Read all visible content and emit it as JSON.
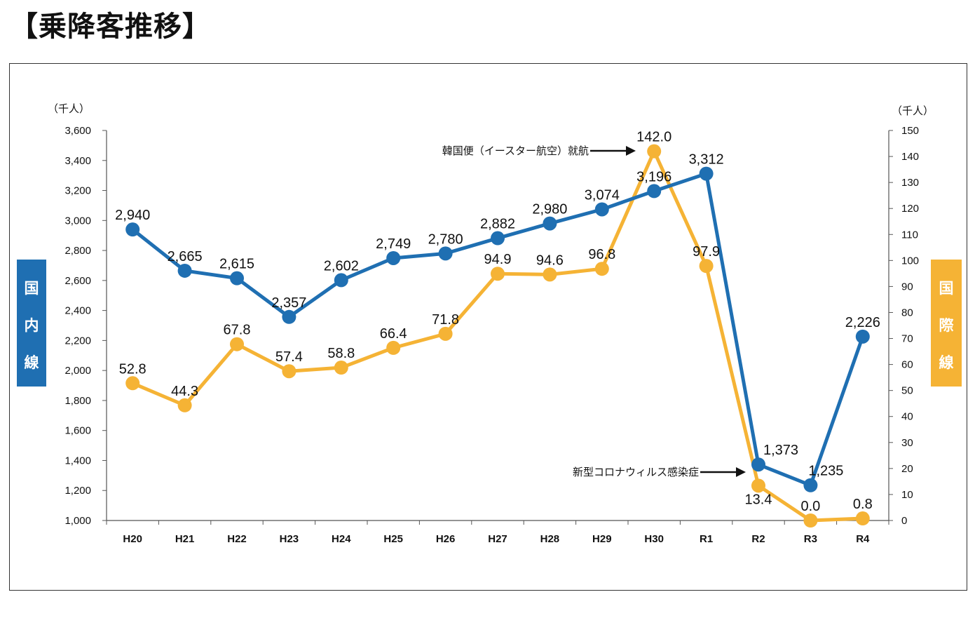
{
  "page": {
    "title": "【乗降客推移】"
  },
  "colors": {
    "domestic": "#1F6FB2",
    "international": "#F5B335",
    "axis": "#555555"
  },
  "chart_data": {
    "type": "line",
    "categories": [
      "H20",
      "H21",
      "H22",
      "H23",
      "H24",
      "H25",
      "H26",
      "H27",
      "H28",
      "H29",
      "H30",
      "R1",
      "R2",
      "R3",
      "R4"
    ],
    "left_axis": {
      "unit": "（千人）",
      "range": [
        1000,
        3600
      ],
      "ticks": [
        "1,000",
        "1,200",
        "1,400",
        "1,600",
        "1,800",
        "2,000",
        "2,200",
        "2,400",
        "2,600",
        "2,800",
        "3,000",
        "3,200",
        "3,400",
        "3,600"
      ],
      "label": "国内線"
    },
    "right_axis": {
      "unit": "（千人）",
      "range": [
        0,
        150
      ],
      "ticks": [
        "0",
        "10",
        "20",
        "30",
        "40",
        "50",
        "60",
        "70",
        "80",
        "90",
        "100",
        "110",
        "120",
        "130",
        "140",
        "150"
      ],
      "label": "国際線"
    },
    "series": [
      {
        "name": "国内線",
        "axis": "left",
        "values": [
          2940,
          2665,
          2615,
          2357,
          2602,
          2749,
          2780,
          2882,
          2980,
          3074,
          3196,
          3312,
          1373,
          1235,
          2226
        ],
        "labels": [
          "2,940",
          "2,665",
          "2,615",
          "2,357",
          "2,602",
          "2,749",
          "2,780",
          "2,882",
          "2,980",
          "3,074",
          "3,196",
          "3,312",
          "1,373",
          "1,235",
          "2,226"
        ]
      },
      {
        "name": "国際線",
        "axis": "right",
        "values": [
          52.8,
          44.3,
          67.8,
          57.4,
          58.8,
          66.4,
          71.8,
          94.9,
          94.6,
          96.8,
          142.0,
          97.9,
          13.4,
          0.0,
          0.8
        ],
        "labels": [
          "52.8",
          "44.3",
          "67.8",
          "57.4",
          "58.8",
          "66.4",
          "71.8",
          "94.9",
          "94.6",
          "96.8",
          "142.0",
          "97.9",
          "13.4",
          "0.0",
          "0.8"
        ]
      }
    ],
    "annotations": [
      {
        "text": "韓国便（イースター航空）就航",
        "category": "H30"
      },
      {
        "text": "新型コロナウィルス感染症",
        "category": "R2"
      }
    ],
    "grid": false,
    "legend": "side-badges"
  }
}
